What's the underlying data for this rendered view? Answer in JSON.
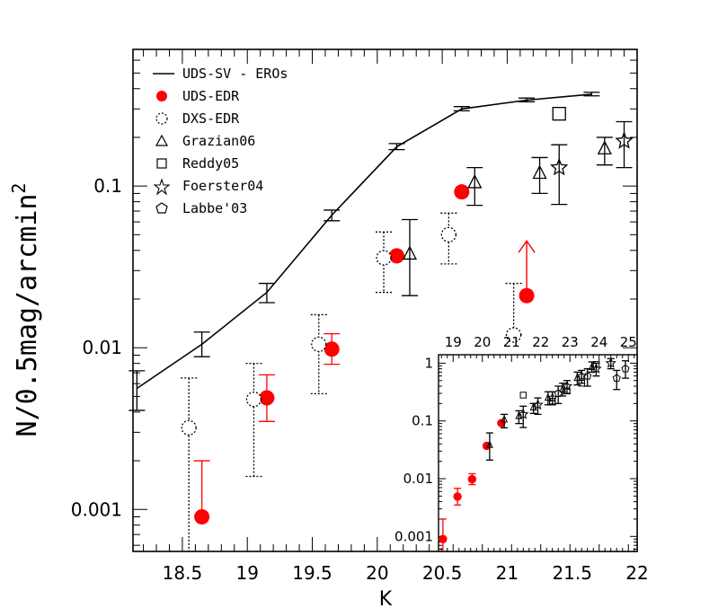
{
  "chart_data": [
    {
      "type": "scatter",
      "xlabel": "K",
      "ylabel": "N/0.5mag/arcmin",
      "ylabel_sup": "2",
      "xlim": [
        18.12,
        22.0
      ],
      "ylim": [
        0.00055,
        0.7
      ],
      "yscale": "log",
      "xticks": [
        18.5,
        19,
        19.5,
        20,
        20.5,
        21,
        21.5,
        22
      ],
      "xtick_labels": [
        "18.5",
        "19",
        "19.5",
        "20",
        "20.5",
        "21",
        "21.5",
        "22"
      ],
      "yticks": [
        0.001,
        0.01,
        0.1
      ],
      "ytick_labels": [
        "0.001",
        "0.01",
        "0.1"
      ],
      "legend_position": "top-left",
      "legend": [
        {
          "label": "UDS-SV - EROs",
          "marker": "line"
        },
        {
          "label": "UDS-EDR",
          "marker": "filled-circle",
          "color": "#ff0000"
        },
        {
          "label": "DXS-EDR",
          "marker": "dotted-circle"
        },
        {
          "label": "Grazian06",
          "marker": "triangle"
        },
        {
          "label": "Reddy05",
          "marker": "square"
        },
        {
          "label": "Foerster04",
          "marker": "star"
        },
        {
          "label": "Labbe'03",
          "marker": "pentagon"
        }
      ],
      "series": [
        {
          "name": "UDS-SV - EROs",
          "style": "line",
          "color": "#000000",
          "x": [
            18.15,
            18.65,
            19.15,
            19.65,
            20.15,
            20.65,
            21.15,
            21.65
          ],
          "y": [
            0.0056,
            0.0105,
            0.022,
            0.066,
            0.175,
            0.3,
            0.34,
            0.37
          ],
          "ylo": [
            0.0041,
            0.0088,
            0.019,
            0.061,
            0.168,
            0.292,
            0.332,
            0.361
          ],
          "yhi": [
            0.0072,
            0.0125,
            0.025,
            0.071,
            0.183,
            0.31,
            0.35,
            0.38
          ]
        },
        {
          "name": "UDS-EDR",
          "style": "filled-circle",
          "color": "#ff0000",
          "x": [
            18.65,
            19.15,
            19.65,
            20.15,
            20.65
          ],
          "y": [
            0.0009,
            0.0049,
            0.0098,
            0.037,
            0.092
          ],
          "ylo": [
            null,
            0.0035,
            0.0079,
            null,
            null
          ],
          "yhi": [
            0.002,
            0.0068,
            0.0122,
            null,
            null
          ]
        },
        {
          "name": "UDS-EDR lower limit",
          "style": "filled-circle-arrow",
          "color": "#ff0000",
          "x": [
            21.15
          ],
          "y": [
            0.021
          ]
        },
        {
          "name": "DXS-EDR",
          "style": "dotted-circle",
          "color": "#000000",
          "x": [
            18.55,
            19.05,
            19.55,
            20.05,
            20.55,
            21.05
          ],
          "y": [
            0.0032,
            0.0048,
            0.0105,
            0.036,
            0.05,
            0.012
          ],
          "ylo": [
            0.00055,
            0.0016,
            0.0052,
            0.022,
            0.033,
            0.012
          ],
          "yhi": [
            0.0065,
            0.008,
            0.016,
            0.052,
            0.068,
            0.025
          ]
        },
        {
          "name": "Grazian06",
          "style": "triangle",
          "color": "#000000",
          "x": [
            20.25,
            20.75,
            21.25,
            21.75
          ],
          "y": [
            0.038,
            0.105,
            0.12,
            0.17
          ],
          "ylo": [
            0.021,
            0.076,
            0.09,
            0.135
          ],
          "yhi": [
            0.062,
            0.13,
            0.15,
            0.2
          ]
        },
        {
          "name": "Reddy05",
          "style": "square",
          "color": "#000000",
          "x": [
            21.4
          ],
          "y": [
            0.28
          ]
        },
        {
          "name": "Foerster04",
          "style": "star",
          "color": "#000000",
          "x": [
            21.4,
            21.9
          ],
          "y": [
            0.13,
            0.19
          ],
          "ylo": [
            0.077,
            0.13
          ],
          "yhi": [
            0.18,
            0.25
          ]
        }
      ]
    },
    {
      "type": "scatter",
      "panel": "inset",
      "yscale": "log",
      "xlim": [
        18.5,
        25.3
      ],
      "ylim": [
        0.00055,
        1.4
      ],
      "xticks": [
        19,
        20,
        21,
        22,
        23,
        24,
        25
      ],
      "xtick_labels": [
        "19",
        "20",
        "21",
        "22",
        "23",
        "24",
        "25"
      ],
      "yticks": [
        0.001,
        0.01,
        0.1,
        1
      ],
      "ytick_labels": [
        "0.001",
        "0.01",
        "0.1",
        "1"
      ],
      "series": [
        {
          "name": "UDS-EDR",
          "style": "filled-circle",
          "color": "#ff0000",
          "x": [
            18.65,
            19.15,
            19.65,
            20.15,
            20.65
          ],
          "y": [
            0.0009,
            0.0049,
            0.0098,
            0.037,
            0.092
          ],
          "ylo": [
            0.0005,
            0.0035,
            0.0079,
            0.034,
            0.088
          ],
          "yhi": [
            0.002,
            0.0068,
            0.0122,
            0.04,
            0.096
          ]
        },
        {
          "name": "Grazian06",
          "style": "triangle",
          "color": "#000000",
          "x": [
            20.25,
            20.75,
            21.25,
            21.75,
            22.25,
            22.75,
            23.25,
            23.75
          ],
          "y": [
            0.038,
            0.105,
            0.12,
            0.17,
            0.25,
            0.35,
            0.55,
            0.85
          ],
          "ylo": [
            0.021,
            0.076,
            0.09,
            0.135,
            0.19,
            0.27,
            0.42,
            0.7
          ],
          "yhi": [
            0.062,
            0.13,
            0.15,
            0.2,
            0.32,
            0.45,
            0.7,
            1.05
          ]
        },
        {
          "name": "Reddy05",
          "style": "square",
          "color": "#000000",
          "x": [
            21.4,
            22.4,
            22.9,
            23.4,
            23.9
          ],
          "y": [
            0.28,
            0.22,
            0.33,
            0.45,
            0.95
          ],
          "ylo": [
            null,
            null,
            null,
            null,
            null
          ],
          "yhi": [
            null,
            null,
            null,
            null,
            null
          ]
        },
        {
          "name": "Foerster04",
          "style": "star",
          "color": "#000000",
          "x": [
            21.4,
            21.9,
            22.4,
            22.9,
            23.4,
            23.9,
            24.4
          ],
          "y": [
            0.13,
            0.19,
            0.25,
            0.4,
            0.6,
            0.8,
            1.0
          ],
          "ylo": [
            0.077,
            0.13,
            0.19,
            0.3,
            0.45,
            0.6,
            0.8
          ],
          "yhi": [
            0.18,
            0.25,
            0.32,
            0.5,
            0.75,
            1.0,
            1.2
          ]
        },
        {
          "name": "Labbe'03",
          "style": "pentagon",
          "color": "#000000",
          "x": [
            22.6,
            23.6,
            24.6,
            24.9
          ],
          "y": [
            0.3,
            0.6,
            0.55,
            0.8
          ],
          "ylo": [
            0.2,
            0.4,
            0.35,
            0.55
          ],
          "yhi": [
            0.4,
            0.8,
            0.75,
            1.1
          ]
        }
      ]
    }
  ]
}
